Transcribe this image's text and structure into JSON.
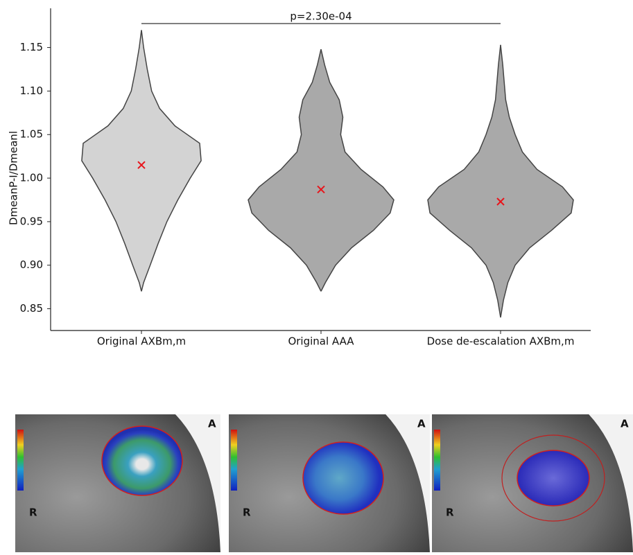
{
  "chart_data": {
    "type": "violin",
    "ylabel": "DmeanP-I/Dmeanl",
    "annotation": "p=2.30e-04",
    "categories": [
      "Original AXBm,m",
      "Original AAA",
      "Dose de-escalation AXBm,m"
    ],
    "violins": [
      {
        "color": "#d3d3d3",
        "mean": 1.015,
        "y": [
          0.87,
          0.88,
          0.9,
          0.925,
          0.95,
          0.975,
          1.0,
          1.02,
          1.04,
          1.06,
          1.08,
          1.1,
          1.125,
          1.15,
          1.17
        ],
        "density": [
          0,
          0.03,
          0.12,
          0.23,
          0.35,
          0.5,
          0.67,
          0.82,
          0.8,
          0.46,
          0.25,
          0.14,
          0.08,
          0.03,
          0
        ]
      },
      {
        "color": "#a9a9a9",
        "mean": 0.987,
        "y": [
          0.87,
          0.88,
          0.9,
          0.92,
          0.94,
          0.96,
          0.975,
          0.99,
          1.01,
          1.03,
          1.05,
          1.07,
          1.09,
          1.11,
          1.13,
          1.148
        ],
        "density": [
          0,
          0.06,
          0.2,
          0.42,
          0.72,
          0.95,
          1,
          0.85,
          0.55,
          0.33,
          0.27,
          0.3,
          0.25,
          0.12,
          0.05,
          0
        ]
      },
      {
        "color": "#a9a9a9",
        "mean": 0.973,
        "y": [
          0.84,
          0.86,
          0.88,
          0.9,
          0.92,
          0.94,
          0.96,
          0.975,
          0.99,
          1.01,
          1.03,
          1.05,
          1.07,
          1.09,
          1.11,
          1.13,
          1.153
        ],
        "density": [
          0,
          0.04,
          0.1,
          0.2,
          0.4,
          0.7,
          0.97,
          1,
          0.85,
          0.5,
          0.3,
          0.2,
          0.12,
          0.07,
          0.05,
          0.03,
          0
        ]
      }
    ],
    "mean_color": "#e8141b",
    "ylim": [
      0.825,
      1.195
    ],
    "yticks": [
      0.85,
      {
        "value": 0.9,
        "label": "0.90"
      },
      0.95,
      {
        "value": 1.0,
        "label": "1.00"
      },
      1.05,
      {
        "value": 1.1,
        "label": "1.10"
      },
      1.15
    ]
  },
  "panels": [
    {
      "top": "A",
      "side": "R"
    },
    {
      "top": "A",
      "side": "R"
    },
    {
      "top": "A",
      "side": "R"
    }
  ]
}
